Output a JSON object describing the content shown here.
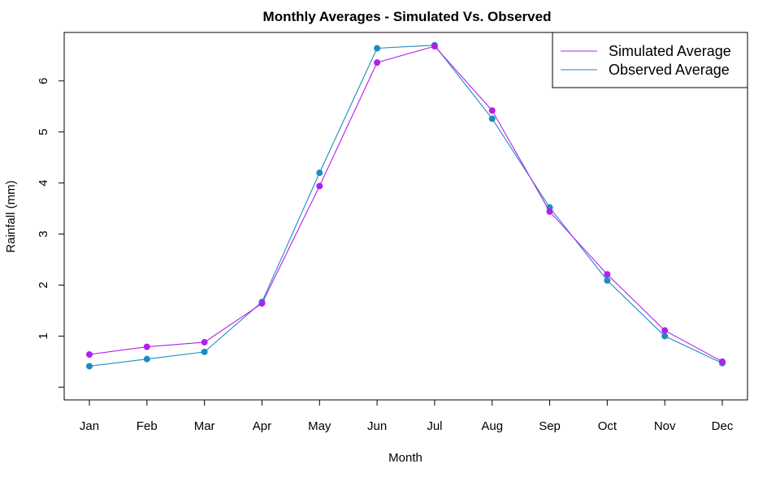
{
  "chart_data": {
    "type": "line",
    "title": "Monthly Averages - Simulated Vs. Observed",
    "xlabel": "Month",
    "ylabel": "Rainfall (mm)",
    "categories": [
      "Jan",
      "Feb",
      "Mar",
      "Apr",
      "May",
      "Jun",
      "Jul",
      "Aug",
      "Sep",
      "Oct",
      "Nov",
      "Dec"
    ],
    "yticks": [
      1,
      2,
      3,
      4,
      5,
      6
    ],
    "ylim": [
      -0.25,
      6.95
    ],
    "grid": false,
    "legend_position": "top-right",
    "series": [
      {
        "name": "Simulated Average",
        "color": "#b31ff0",
        "values": [
          0.64,
          0.79,
          0.88,
          1.64,
          3.94,
          6.36,
          6.68,
          5.42,
          3.44,
          2.21,
          1.11,
          0.5
        ]
      },
      {
        "name": "Observed Average",
        "color": "#1c8cbf",
        "values": [
          0.41,
          0.55,
          0.69,
          1.67,
          4.2,
          6.64,
          6.7,
          5.26,
          3.52,
          2.09,
          1.0,
          0.47
        ]
      }
    ]
  }
}
